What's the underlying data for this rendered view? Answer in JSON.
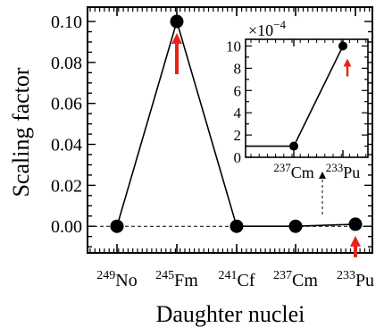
{
  "chart_data": [
    {
      "type": "line",
      "xlabel": "Daughter nuclei",
      "ylabel": "Scaling  factor",
      "ylim": [
        -0.013,
        0.107
      ],
      "y_ticks": [
        "0.00",
        "0.02",
        "0.04",
        "0.06",
        "0.08",
        "0.10"
      ],
      "y_tick_values": [
        0.0,
        0.02,
        0.04,
        0.06,
        0.08,
        0.1
      ],
      "categories": [
        {
          "mass": "249",
          "element": "No"
        },
        {
          "mass": "245",
          "element": "Fm"
        },
        {
          "mass": "241",
          "element": "Cf"
        },
        {
          "mass": "237",
          "element": "Cm"
        },
        {
          "mass": "233",
          "element": "Pu"
        }
      ],
      "series": [
        {
          "values": [
            0.0,
            0.1,
            0.0,
            0.0,
            0.001
          ],
          "color": "#000000"
        }
      ],
      "reference_line": {
        "y": 0.0,
        "style": "dashed"
      },
      "arrows": [
        {
          "category_index": 1,
          "color": "#e8231a",
          "direction": "up"
        },
        {
          "category_index": 4,
          "color": "#e8231a",
          "direction": "up"
        }
      ]
    },
    {
      "type": "line",
      "role": "inset",
      "y_multiplier": {
        "base": "×10",
        "exponent": "−4"
      },
      "ylim": [
        0,
        10.6
      ],
      "y_ticks": [
        "0",
        "2",
        "4",
        "6",
        "8",
        "10"
      ],
      "y_tick_values": [
        0,
        2,
        4,
        6,
        8,
        10
      ],
      "categories": [
        {
          "mass": "237",
          "element": "Cm"
        },
        {
          "mass": "233",
          "element": "Pu"
        }
      ],
      "series": [
        {
          "values": [
            1.0,
            10.0
          ],
          "color": "#000000"
        }
      ],
      "arrows": [
        {
          "category_index": 1,
          "color": "#e8231a",
          "direction": "up"
        }
      ]
    }
  ]
}
